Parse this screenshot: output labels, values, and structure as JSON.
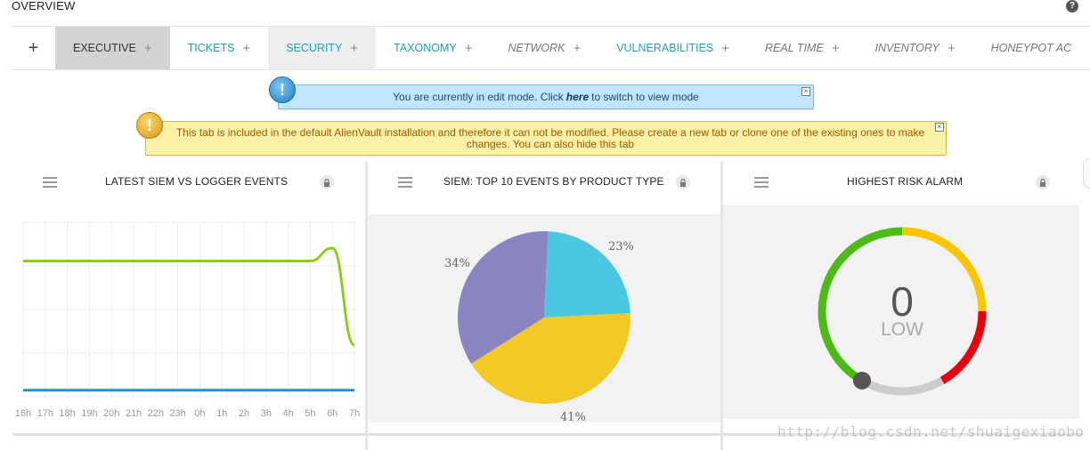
{
  "header": {
    "title": "OVERVIEW",
    "help_label": "?"
  },
  "tabs": {
    "add_label": "+",
    "items": [
      {
        "label": "EXECUTIVE",
        "plus": "+"
      },
      {
        "label": "TICKETS",
        "plus": "+"
      },
      {
        "label": "SECURITY",
        "plus": "+"
      },
      {
        "label": "TAXONOMY",
        "plus": "+"
      },
      {
        "label": "NETWORK",
        "plus": "+"
      },
      {
        "label": "VULNERABILITIES",
        "plus": "+"
      },
      {
        "label": "REAL TIME",
        "plus": "+"
      },
      {
        "label": "INVENTORY",
        "plus": "+"
      },
      {
        "label": "HONEYPOT AC",
        "plus": ""
      }
    ]
  },
  "info_message": {
    "icon": "!",
    "before": "You are currently in edit mode. Click",
    "link": "here",
    "after": "to switch to view mode"
  },
  "warning_message": {
    "icon": "!",
    "text": "This tab is included in the default AlienVault installation and therefore it can not be modified. Please create a new tab or clone one of the existing ones to make changes. You can also hide this tab"
  },
  "widgets": [
    {
      "title": "LATEST SIEM VS LOGGER EVENTS"
    },
    {
      "title": "SIEM: TOP 10 EVENTS BY PRODUCT TYPE"
    },
    {
      "title": "HIGHEST RISK ALARM"
    }
  ],
  "chart_data": [
    {
      "type": "line",
      "categories": [
        "16h",
        "17h",
        "18h",
        "19h",
        "20h",
        "21h",
        "22h",
        "23h",
        "0h",
        "1h",
        "2h",
        "3h",
        "4h",
        "5h",
        "6h",
        "7h"
      ],
      "series": [
        {
          "values": [
            100,
            100,
            100,
            100,
            100,
            100,
            100,
            100,
            100,
            100,
            100,
            100,
            100,
            100,
            110,
            35
          ],
          "color": "#8ccc1c"
        },
        {
          "values": [
            0,
            0,
            0,
            0,
            0,
            0,
            0,
            0,
            0,
            0,
            0,
            0,
            0,
            0,
            0,
            0
          ],
          "color": "#1f93d6"
        }
      ],
      "ylim": [
        -5,
        130
      ],
      "grid": true
    },
    {
      "type": "pie",
      "slices": [
        {
          "label": "23%",
          "value": 23,
          "color": "#4cc7e1"
        },
        {
          "label": "41%",
          "value": 41,
          "color": "#f2c925"
        },
        {
          "label": "34%",
          "value": 34,
          "color": "#8b84c2"
        }
      ]
    }
  ],
  "gauge": {
    "value": "0",
    "label": "LOW",
    "level": 0,
    "colors": {
      "green": "#4cbb17",
      "yellow": "#f7c600",
      "red": "#e8000d",
      "track": "#cccccc",
      "knob": "#555555"
    }
  },
  "watermark": "http://blog.csdn.net/shuaigexiaobo"
}
